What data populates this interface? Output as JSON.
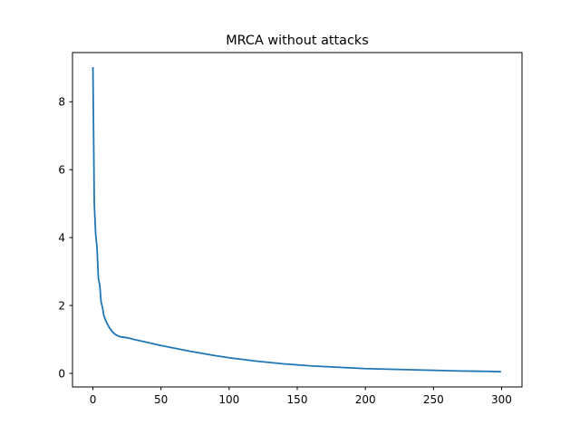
{
  "chart_data": {
    "type": "line",
    "title": "MRCA without attacks",
    "xlabel": "",
    "ylabel": "",
    "xlim": [
      -15,
      315
    ],
    "ylim": [
      -0.4,
      9.45
    ],
    "x_ticks": [
      0,
      50,
      100,
      150,
      200,
      250,
      300
    ],
    "y_ticks": [
      0,
      2,
      4,
      6,
      8
    ],
    "grid": false,
    "colors": {
      "line": "#1f77b4",
      "axes": "#000000"
    },
    "series": [
      {
        "x": [
          0,
          1,
          2,
          3,
          4,
          5,
          6,
          7,
          8,
          9,
          10,
          12,
          14,
          16,
          18,
          20,
          25,
          30,
          40,
          50,
          60,
          70,
          80,
          90,
          100,
          110,
          120,
          130,
          140,
          150,
          160,
          170,
          180,
          190,
          200,
          210,
          220,
          230,
          240,
          250,
          260,
          270,
          280,
          290,
          299
        ],
        "y": [
          9.0,
          5.0,
          4.1,
          3.7,
          2.8,
          2.6,
          2.1,
          1.95,
          1.7,
          1.6,
          1.5,
          1.35,
          1.24,
          1.16,
          1.11,
          1.08,
          1.05,
          1.0,
          0.91,
          0.82,
          0.74,
          0.66,
          0.59,
          0.52,
          0.46,
          0.41,
          0.36,
          0.32,
          0.28,
          0.25,
          0.22,
          0.2,
          0.18,
          0.16,
          0.14,
          0.13,
          0.12,
          0.11,
          0.1,
          0.09,
          0.08,
          0.07,
          0.065,
          0.06,
          0.05
        ]
      }
    ]
  }
}
